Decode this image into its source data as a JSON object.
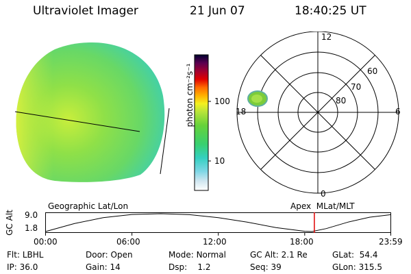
{
  "header": {
    "instrument": "Ultraviolet Imager",
    "date": "21 Jun 07",
    "time": "18:40:25 UT"
  },
  "colorbar": {
    "unit_label": "photon cm⁻²s⁻¹",
    "ticks": [
      "100",
      "10"
    ]
  },
  "polar_plot": {
    "mlt_labels": [
      "12",
      "18",
      "6",
      "0"
    ],
    "mlat_labels": [
      "60",
      "70",
      "80"
    ]
  },
  "timeline": {
    "left_title": "Geographic Lat/Lon",
    "right_title": "Apex  MLat/MLT",
    "axis_label": "GC Alt",
    "y_ticks": [
      "9.0",
      "1.8"
    ],
    "x_ticks": [
      "00:00",
      "06:00",
      "12:00",
      "18:00",
      "23:59"
    ],
    "current_time_hours": 18.67,
    "marker_color": "#e00000",
    "altitude_curve": [
      {
        "t": 0.0,
        "alt": 1.8
      },
      {
        "t": 2.0,
        "alt": 5.0
      },
      {
        "t": 4.0,
        "alt": 7.4
      },
      {
        "t": 6.0,
        "alt": 8.7
      },
      {
        "t": 8.0,
        "alt": 9.0
      },
      {
        "t": 10.0,
        "alt": 8.6
      },
      {
        "t": 12.0,
        "alt": 7.4
      },
      {
        "t": 14.0,
        "alt": 5.6
      },
      {
        "t": 16.0,
        "alt": 3.4
      },
      {
        "t": 18.0,
        "alt": 1.9
      },
      {
        "t": 18.5,
        "alt": 1.8
      },
      {
        "t": 19.5,
        "alt": 3.0
      },
      {
        "t": 21.0,
        "alt": 5.6
      },
      {
        "t": 22.5,
        "alt": 7.6
      },
      {
        "t": 23.98,
        "alt": 8.6
      }
    ]
  },
  "info": {
    "filter_label": "Flt:",
    "filter_value": "LBHL",
    "ip_label": "IP:",
    "ip_value": "36.0",
    "door_label": "Door:",
    "door_value": "Open",
    "gain_label": "Gain:",
    "gain_value": "14",
    "mode_label": "Mode:",
    "mode_value": "Normal",
    "dsp_label": "Dsp:",
    "dsp_value": "1.2",
    "gcalt_label": "GC Alt:",
    "gcalt_value": "2.1 Re",
    "seq_label": "Seq:",
    "seq_value": "39",
    "glat_label": "GLat:",
    "glat_value": "54.4",
    "glon_label": "GLon:",
    "glon_value": "315.5"
  }
}
